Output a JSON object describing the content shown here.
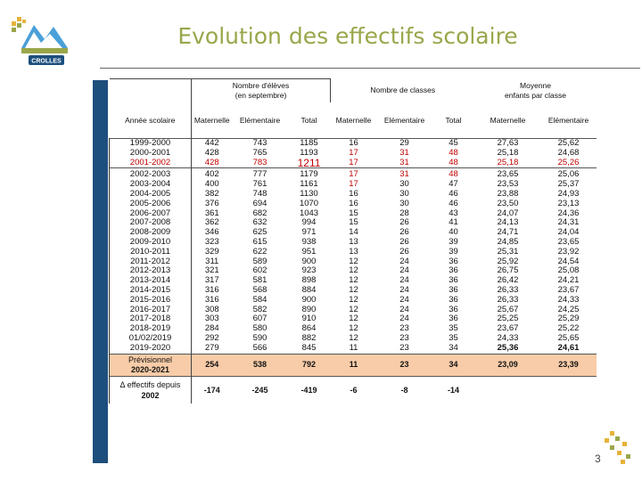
{
  "header": {
    "title": "Evolution des effectifs scolaire",
    "logo_text": "CROLLES"
  },
  "table": {
    "groups": {
      "eleves": [
        "Nombre d'élèves",
        "(en septembre)"
      ],
      "classes": "Nombre de classes",
      "moyenne": [
        "Moyenne",
        "enfants par classe"
      ]
    },
    "columns": {
      "year": "Année scolaire",
      "e_mat": "Maternelle",
      "e_elem": "Elémentaire",
      "e_tot": "Total",
      "c_mat": "Maternelle",
      "c_elem": "Elémentaire",
      "c_tot": "Total",
      "m_mat": "Maternelle",
      "m_elem": "Elémentaire"
    },
    "rows": [
      [
        "1999-2000",
        "442",
        "743",
        "1185",
        "16",
        "29",
        "45",
        "27,63",
        "25,62"
      ],
      [
        "2000-2001",
        "428",
        "765",
        "1193",
        "17",
        "31",
        "48",
        "25,18",
        "24,68"
      ],
      [
        "2001-2002",
        "428",
        "783",
        "1211",
        "17",
        "31",
        "48",
        "25,18",
        "25,26"
      ],
      [
        "2002-2003",
        "402",
        "777",
        "1179",
        "17",
        "31",
        "48",
        "23,65",
        "25,06"
      ],
      [
        "2003-2004",
        "400",
        "761",
        "1161",
        "17",
        "30",
        "47",
        "23,53",
        "25,37"
      ],
      [
        "2004-2005",
        "382",
        "748",
        "1130",
        "16",
        "30",
        "46",
        "23,88",
        "24,93"
      ],
      [
        "2005-2006",
        "376",
        "694",
        "1070",
        "16",
        "30",
        "46",
        "23,50",
        "23,13"
      ],
      [
        "2006-2007",
        "361",
        "682",
        "1043",
        "15",
        "28",
        "43",
        "24,07",
        "24,36"
      ],
      [
        "2007-2008",
        "362",
        "632",
        "994",
        "15",
        "26",
        "41",
        "24,13",
        "24,31"
      ],
      [
        "2008-2009",
        "346",
        "625",
        "971",
        "14",
        "26",
        "40",
        "24,71",
        "24,04"
      ],
      [
        "2009-2010",
        "323",
        "615",
        "938",
        "13",
        "26",
        "39",
        "24,85",
        "23,65"
      ],
      [
        "2010-2011",
        "329",
        "622",
        "951",
        "13",
        "26",
        "39",
        "25,31",
        "23,92"
      ],
      [
        "2011-2012",
        "311",
        "589",
        "900",
        "12",
        "24",
        "36",
        "25,92",
        "24,54"
      ],
      [
        "2012-2013",
        "321",
        "602",
        "923",
        "12",
        "24",
        "36",
        "26,75",
        "25,08"
      ],
      [
        "2013-2014",
        "317",
        "581",
        "898",
        "12",
        "24",
        "36",
        "26,42",
        "24,21"
      ],
      [
        "2014-2015",
        "316",
        "568",
        "884",
        "12",
        "24",
        "36",
        "26,33",
        "23,67"
      ],
      [
        "2015-2016",
        "316",
        "584",
        "900",
        "12",
        "24",
        "36",
        "26,33",
        "24,33"
      ],
      [
        "2016-2017",
        "308",
        "582",
        "890",
        "12",
        "24",
        "36",
        "25,67",
        "24,25"
      ],
      [
        "2017-2018",
        "303",
        "607",
        "910",
        "12",
        "24",
        "36",
        "25,25",
        "25,29"
      ],
      [
        "2018-2019",
        "284",
        "580",
        "864",
        "12",
        "23",
        "35",
        "23,67",
        "25,22"
      ],
      [
        "01/02/2019",
        "292",
        "590",
        "882",
        "12",
        "23",
        "35",
        "24,33",
        "25,65"
      ],
      [
        "2019-2020",
        "279",
        "566",
        "845",
        "11",
        "23",
        "34",
        "25,36",
        "24,61"
      ]
    ],
    "forecast": {
      "label": [
        "Prévisionnel",
        "2020-2021"
      ],
      "values": [
        "254",
        "538",
        "792",
        "11",
        "23",
        "34",
        "23,09",
        "23,39"
      ]
    },
    "delta": {
      "label": [
        "Δ effectifs depuis",
        "2002"
      ],
      "values": [
        "-174",
        "-245",
        "-419",
        "-6",
        "-8",
        "-14"
      ]
    }
  },
  "footer": {
    "page_number": "3"
  },
  "colors": {
    "title": "#9aa64a",
    "highlight_red": "#c00000",
    "forecast_fill": "#f8cca8",
    "side_bar": "#1d4f7d"
  }
}
